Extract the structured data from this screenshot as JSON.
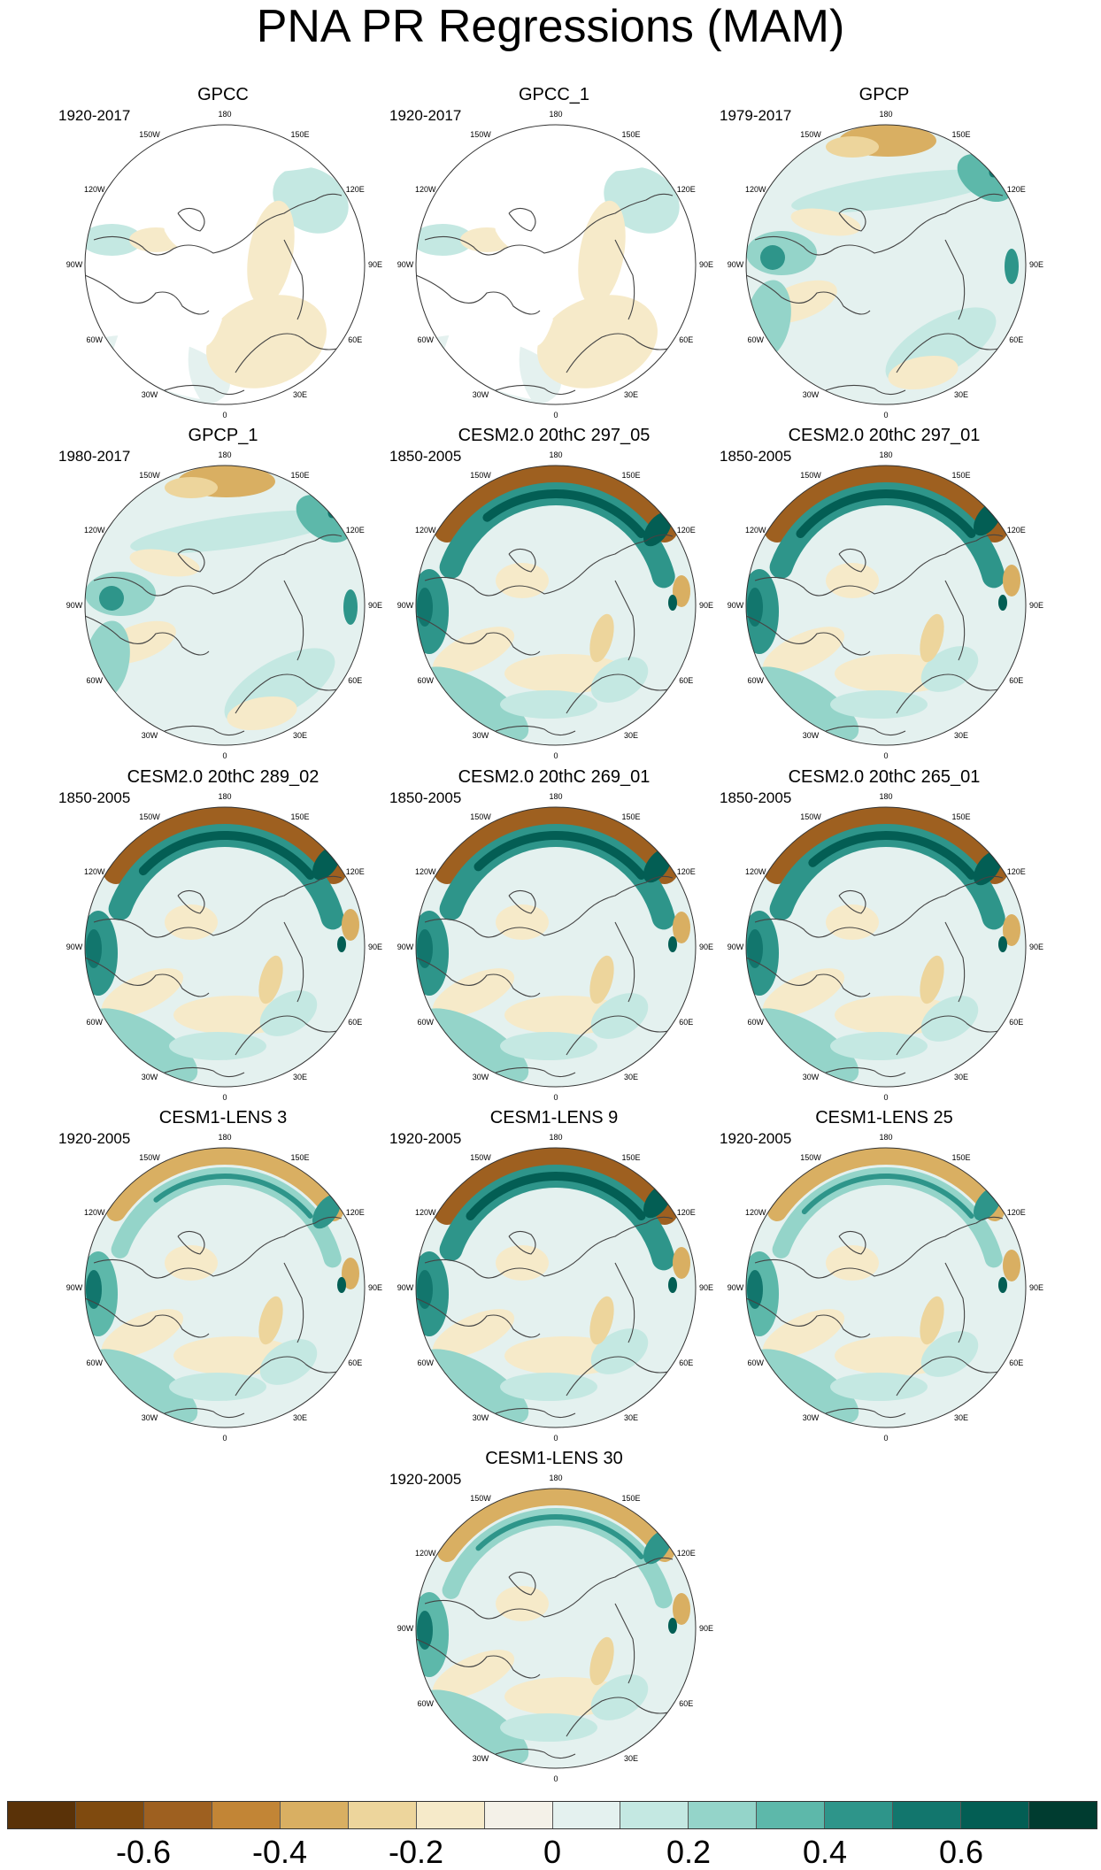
{
  "title": "PNA PR Regressions (MAM)",
  "longitude_labels": [
    "180",
    "150E",
    "120E",
    "90E",
    "60E",
    "30E",
    "0",
    "30W",
    "60W",
    "90W",
    "120W",
    "150W"
  ],
  "panels": [
    {
      "title": "GPCC",
      "period": "1920-2017",
      "kind": "obs-land"
    },
    {
      "title": "GPCC_1",
      "period": "1920-2017",
      "kind": "obs-land"
    },
    {
      "title": "GPCP",
      "period": "1979-2017",
      "kind": "obs-global"
    },
    {
      "title": "GPCP_1",
      "period": "1980-2017",
      "kind": "obs-global"
    },
    {
      "title": "CESM2.0 20thC 297_05",
      "period": "1850-2005",
      "kind": "model-strong"
    },
    {
      "title": "CESM2.0 20thC 297_01",
      "period": "1850-2005",
      "kind": "model-strong"
    },
    {
      "title": "CESM2.0 20thC 289_02",
      "period": "1850-2005",
      "kind": "model-strong"
    },
    {
      "title": "CESM2.0 20thC 269_01",
      "period": "1850-2005",
      "kind": "model-strong"
    },
    {
      "title": "CESM2.0 20thC 265_01",
      "period": "1850-2005",
      "kind": "model-strong"
    },
    {
      "title": "CESM1-LENS 3",
      "period": "1920-2005",
      "kind": "model-weak"
    },
    {
      "title": "CESM1-LENS 9",
      "period": "1920-2005",
      "kind": "model-strong"
    },
    {
      "title": "CESM1-LENS 25",
      "period": "1920-2005",
      "kind": "model-weak"
    },
    {
      "title": "CESM1-LENS 30",
      "period": "1920-2005",
      "kind": "model-weak"
    }
  ],
  "colorbar": {
    "levels": [
      -0.7,
      -0.6,
      -0.5,
      -0.4,
      -0.3,
      -0.2,
      -0.1,
      0,
      0.1,
      0.2,
      0.3,
      0.4,
      0.5,
      0.6,
      0.7
    ],
    "tick_labels": [
      "-0.6",
      "-0.4",
      "-0.2",
      "0",
      "0.2",
      "0.4",
      "0.6"
    ],
    "tick_values": [
      -0.6,
      -0.4,
      -0.2,
      0,
      0.2,
      0.4,
      0.6
    ],
    "colors": [
      "#5a3208",
      "#7f4a0f",
      "#9e6020",
      "#c28536",
      "#d9af62",
      "#edd59c",
      "#f6eac9",
      "#f4f1e8",
      "#e4f1ef",
      "#c4e8e2",
      "#94d4c9",
      "#5db8aa",
      "#2e958a",
      "#12766d",
      "#035e54",
      "#003c30"
    ]
  }
}
